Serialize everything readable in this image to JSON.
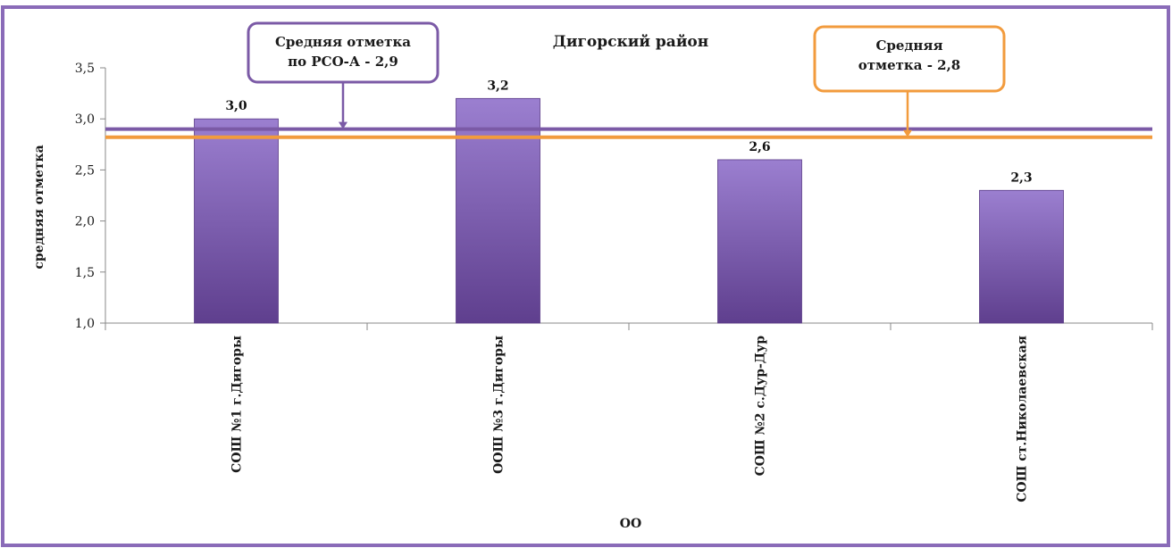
{
  "chart_data": {
    "type": "bar",
    "title": "Дигорский район",
    "xlabel": "ОО",
    "ylabel": "средняя отметка",
    "categories": [
      "СОШ №1 г.Дигоры",
      "ООШ №3 г.Дигоры",
      "СОШ №2 с.Дур-Дур",
      "СОШ ст.Николаевская"
    ],
    "values": [
      3.0,
      3.2,
      2.6,
      2.3
    ],
    "value_labels": [
      "3,0",
      "3,2",
      "2,6",
      "2,3"
    ],
    "ylim": [
      1.0,
      3.5
    ],
    "yticks": [
      "1,0",
      "1,5",
      "2,0",
      "2,5",
      "3,0",
      "3,5"
    ],
    "grid": false,
    "reference_lines": [
      {
        "value": 2.9,
        "color": "#7b5aa6",
        "label_lines": [
          "Средняя отметка",
          "по РСО-А - 2,9"
        ]
      },
      {
        "value": 2.82,
        "color": "#f29b3d",
        "label_lines": [
          "Средняя",
          "отметка -  2,8"
        ]
      }
    ],
    "colors": {
      "bar_top": "#9b7fd0",
      "bar_bottom": "#5f3f8e",
      "frame": "#8a6bb8"
    }
  }
}
